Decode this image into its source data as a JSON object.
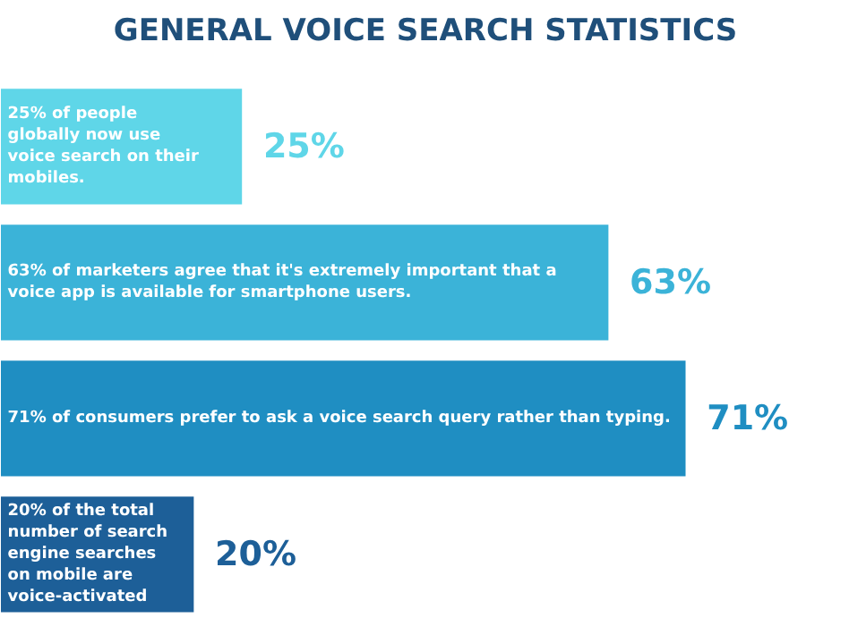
{
  "chart_data": {
    "type": "bar",
    "orientation": "horizontal",
    "title": "GENERAL VOICE SEARCH STATISTICS",
    "categories": [
      "25% of people globally now use voice search on their mobiles.",
      "63% of marketers agree that it's extremely important that a voice app is available for smartphone users.",
      "71% of consumers prefer to ask a voice search query rather than typing.",
      "20% of the total number of search engine searches on mobile are voice-activated"
    ],
    "values": [
      25,
      63,
      71,
      20
    ],
    "value_labels": [
      "25%",
      "63%",
      "71%",
      "20%"
    ],
    "colors": [
      "#5fd6e8",
      "#3bb3d8",
      "#1f8ec2",
      "#1d5f98"
    ]
  }
}
